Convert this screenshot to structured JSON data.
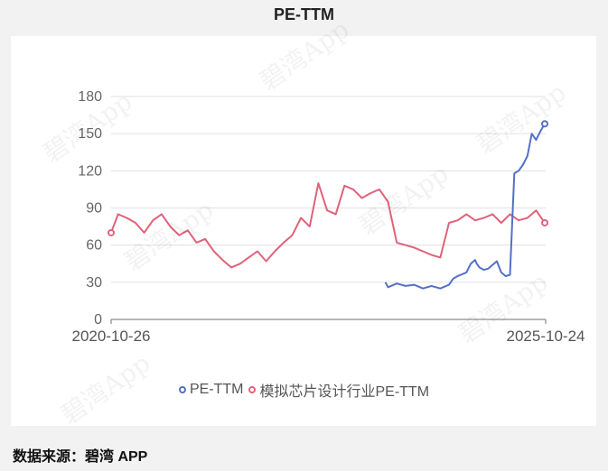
{
  "title": "PE-TTM",
  "source_label": "数据来源：碧湾 APP",
  "watermark_text": "碧湾App",
  "chart_data": {
    "type": "line",
    "title": "PE-TTM",
    "xlabel": "",
    "ylabel": "",
    "ylim": [
      0,
      180
    ],
    "yticks": [
      0,
      30,
      60,
      90,
      120,
      150,
      180
    ],
    "x_start_label": "2020-10-26",
    "x_end_label": "2025-10-24",
    "x_range_years": [
      2020.82,
      2025.81
    ],
    "grid": true,
    "legend_position": "bottom",
    "series": [
      {
        "name": "PE-TTM",
        "color": "#5470c6",
        "x": [
          2023.97,
          2024.0,
          2024.1,
          2024.2,
          2024.3,
          2024.4,
          2024.5,
          2024.6,
          2024.7,
          2024.75,
          2024.8,
          2024.9,
          2024.95,
          2025.0,
          2025.02,
          2025.05,
          2025.1,
          2025.15,
          2025.2,
          2025.25,
          2025.3,
          2025.35,
          2025.4,
          2025.45,
          2025.5,
          2025.55,
          2025.6,
          2025.65,
          2025.7,
          2025.75,
          2025.8
        ],
        "values": [
          30,
          26,
          29,
          27,
          28,
          25,
          27,
          25,
          28,
          33,
          35,
          38,
          45,
          48,
          45,
          42,
          40,
          41,
          44,
          47,
          38,
          35,
          36,
          118,
          120,
          125,
          132,
          150,
          145,
          152,
          158
        ]
      },
      {
        "name": "模拟芯片设计行业PE-TTM",
        "color": "#e0627a",
        "x": [
          2020.82,
          2020.9,
          2021.0,
          2021.1,
          2021.2,
          2021.3,
          2021.4,
          2021.5,
          2021.6,
          2021.7,
          2021.8,
          2021.9,
          2022.0,
          2022.1,
          2022.2,
          2022.3,
          2022.4,
          2022.5,
          2022.6,
          2022.7,
          2022.8,
          2022.9,
          2023.0,
          2023.1,
          2023.2,
          2023.3,
          2023.4,
          2023.5,
          2023.6,
          2023.7,
          2023.8,
          2023.9,
          2024.0,
          2024.1,
          2024.2,
          2024.3,
          2024.4,
          2024.5,
          2024.6,
          2024.7,
          2024.8,
          2024.9,
          2025.0,
          2025.1,
          2025.2,
          2025.3,
          2025.4,
          2025.5,
          2025.6,
          2025.7,
          2025.8
        ],
        "values": [
          70,
          85,
          82,
          78,
          70,
          80,
          85,
          75,
          68,
          72,
          62,
          65,
          55,
          48,
          42,
          45,
          50,
          55,
          47,
          55,
          62,
          68,
          82,
          75,
          110,
          88,
          85,
          108,
          105,
          98,
          102,
          105,
          95,
          62,
          60,
          58,
          55,
          52,
          50,
          78,
          80,
          85,
          80,
          82,
          85,
          78,
          85,
          80,
          82,
          88,
          78
        ]
      }
    ]
  }
}
